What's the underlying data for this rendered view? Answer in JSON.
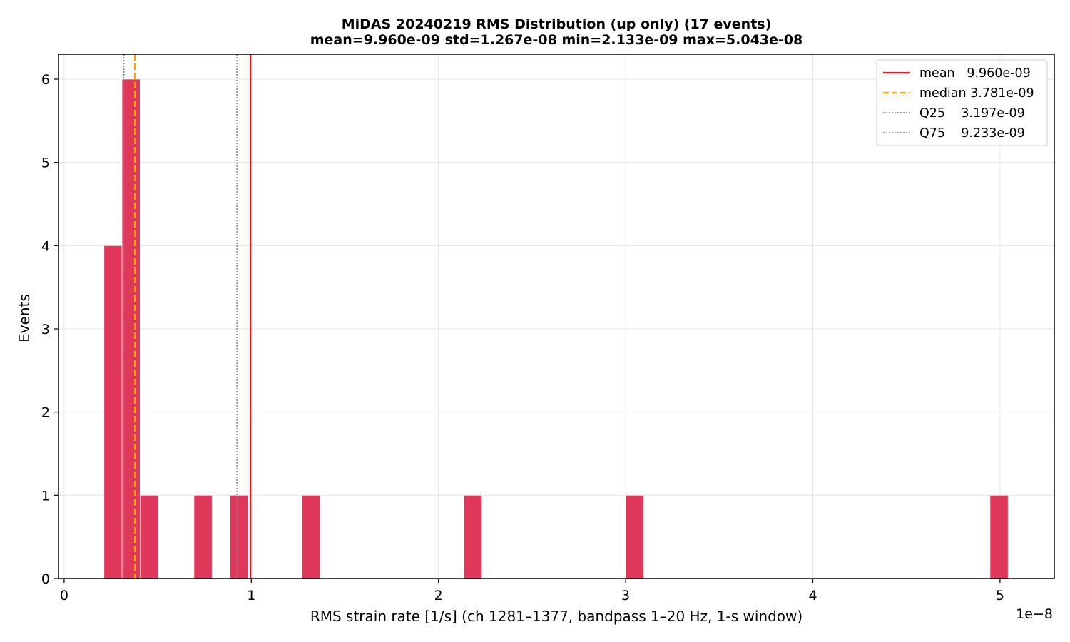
{
  "chart_data": {
    "type": "bar",
    "title": "MiDAS 20240219  RMS Distribution  (up only)  (17 events)",
    "subtitle": "mean=9.960e-09  std=1.267e-08  min=2.133e-09  max=5.043e-08",
    "xlabel": "RMS strain rate [1/s]  (ch 1281–1377, bandpass 1–20 Hz, 1-s window)",
    "ylabel": "Events",
    "x_offset_label": "1e−8",
    "xlim": [
      -3e-10,
      5.29e-08
    ],
    "ylim": [
      0,
      6.3
    ],
    "x_ticks": [
      0,
      1e-08,
      2e-08,
      3e-08,
      4e-08,
      5e-08
    ],
    "x_tick_labels": [
      "0",
      "1",
      "2",
      "3",
      "4",
      "5"
    ],
    "y_ticks": [
      0,
      1,
      2,
      3,
      4,
      5,
      6
    ],
    "y_tick_labels": [
      "0",
      "1",
      "2",
      "3",
      "4",
      "5",
      "6"
    ],
    "grid": true,
    "bar_color": "#e0385a",
    "bins": [
      {
        "x0": 2.133e-09,
        "x1": 3.094e-09,
        "count": 4
      },
      {
        "x0": 3.094e-09,
        "x1": 4.056e-09,
        "count": 6
      },
      {
        "x0": 4.056e-09,
        "x1": 5.017e-09,
        "count": 1
      },
      {
        "x0": 6.94e-09,
        "x1": 7.902e-09,
        "count": 1
      },
      {
        "x0": 8.863e-09,
        "x1": 9.825e-09,
        "count": 1
      },
      {
        "x0": 1.271e-08,
        "x1": 1.367e-08,
        "count": 1
      },
      {
        "x0": 2.136e-08,
        "x1": 2.232e-08,
        "count": 1
      },
      {
        "x0": 3.001e-08,
        "x1": 3.097e-08,
        "count": 1
      },
      {
        "x0": 4.947e-08,
        "x1": 5.043e-08,
        "count": 1
      }
    ],
    "reference_lines": [
      {
        "name": "mean",
        "label": "mean   9.960e-09",
        "value": 9.96e-09,
        "color": "#ee1111",
        "style": "solid"
      },
      {
        "name": "median",
        "label": "median 3.781e-09",
        "value": 3.781e-09,
        "color": "#ffa500",
        "style": "dashed"
      },
      {
        "name": "Q25",
        "label": "Q25    3.197e-09",
        "value": 3.197e-09,
        "color": "#808080",
        "style": "dotted"
      },
      {
        "name": "Q75",
        "label": "Q75    9.233e-09",
        "value": 9.233e-09,
        "color": "#808080",
        "style": "dotted"
      }
    ],
    "legend_position": "top-right"
  }
}
